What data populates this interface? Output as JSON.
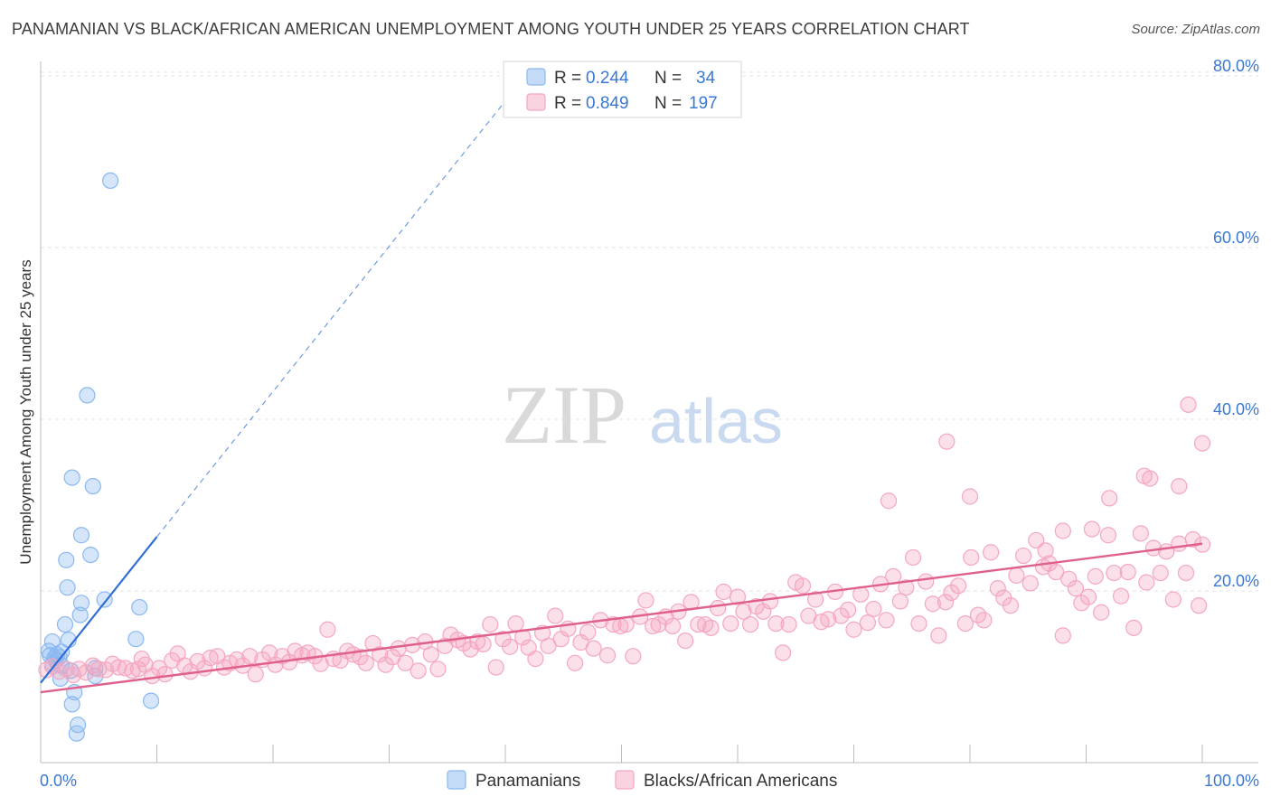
{
  "title": "PANAMANIAN VS BLACK/AFRICAN AMERICAN UNEMPLOYMENT AMONG YOUTH UNDER 25 YEARS CORRELATION CHART",
  "source": "Source: ZipAtlas.com",
  "watermark": {
    "zip": "ZIP",
    "atlas": "atlas"
  },
  "legend_box": {
    "rows": [
      {
        "r_label": "R =",
        "r_value": "0.244",
        "n_label": "N =",
        "n_value": "34",
        "color": "#8ab8f0"
      },
      {
        "r_label": "R =",
        "r_value": "0.849",
        "n_label": "N =",
        "n_value": "197",
        "color": "#f4a7bf"
      }
    ]
  },
  "chart_data": {
    "type": "scatter",
    "xlabel": "",
    "ylabel": "Unemployment Among Youth under 25 years",
    "xlim": [
      0,
      100
    ],
    "ylim": [
      0,
      80
    ],
    "x_tick_labels": [
      "0.0%",
      "100.0%"
    ],
    "y_tick_labels": [
      "20.0%",
      "40.0%",
      "60.0%",
      "80.0%"
    ],
    "y_ticks": [
      20,
      40,
      60,
      80
    ],
    "grid": true,
    "legend_position": "bottom-center",
    "series": [
      {
        "name": "Panamanians",
        "color": "#8ab8f0",
        "trend_color": "#2f6fd6",
        "trend": {
          "x0": 0,
          "y0": 9.3,
          "x1": 10,
          "y1": 26.3,
          "dashed_to_x": 50,
          "dashed_to_y": 94
        },
        "points": [
          [
            6.0,
            67.8
          ],
          [
            4.0,
            42.8
          ],
          [
            2.7,
            33.2
          ],
          [
            4.5,
            32.2
          ],
          [
            3.5,
            26.5
          ],
          [
            4.3,
            24.2
          ],
          [
            2.2,
            23.6
          ],
          [
            2.3,
            20.4
          ],
          [
            3.5,
            18.6
          ],
          [
            5.5,
            19.0
          ],
          [
            3.4,
            17.2
          ],
          [
            2.1,
            16.1
          ],
          [
            8.5,
            18.1
          ],
          [
            1.0,
            14.1
          ],
          [
            2.4,
            14.3
          ],
          [
            8.2,
            14.4
          ],
          [
            0.8,
            12.5
          ],
          [
            1.4,
            12.6
          ],
          [
            1.8,
            12.9
          ],
          [
            1.2,
            12.2
          ],
          [
            0.7,
            13.0
          ],
          [
            1.6,
            12.3
          ],
          [
            1.0,
            11.5
          ],
          [
            1.3,
            11.9
          ],
          [
            1.8,
            11.3
          ],
          [
            2.6,
            10.7
          ],
          [
            4.7,
            11.0
          ],
          [
            1.7,
            9.8
          ],
          [
            4.7,
            10.1
          ],
          [
            2.9,
            8.2
          ],
          [
            2.7,
            6.8
          ],
          [
            9.5,
            7.2
          ],
          [
            3.2,
            4.4
          ],
          [
            3.1,
            3.4
          ]
        ]
      },
      {
        "name": "Blacks/African Americans",
        "color": "#f4a7bf",
        "trend_color": "#e0608c",
        "trend": {
          "x0": 0,
          "y0": 8.2,
          "x1": 100,
          "y1": 25.5
        },
        "points": [
          [
            0.5,
            10.8
          ],
          [
            1.0,
            11.2
          ],
          [
            1.6,
            10.6
          ],
          [
            2.2,
            10.9
          ],
          [
            2.8,
            10.2
          ],
          [
            3.3,
            10.9
          ],
          [
            3.9,
            10.5
          ],
          [
            4.5,
            11.3
          ],
          [
            5.0,
            10.9
          ],
          [
            5.6,
            10.8
          ],
          [
            6.2,
            11.5
          ],
          [
            6.7,
            11.1
          ],
          [
            7.3,
            11.0
          ],
          [
            7.9,
            10.7
          ],
          [
            8.4,
            10.9
          ],
          [
            8.7,
            12.1
          ],
          [
            9.0,
            11.4
          ],
          [
            9.6,
            10.1
          ],
          [
            10.2,
            11.0
          ],
          [
            10.7,
            10.3
          ],
          [
            11.3,
            11.9
          ],
          [
            11.8,
            12.7
          ],
          [
            12.4,
            11.3
          ],
          [
            12.9,
            10.6
          ],
          [
            13.5,
            11.8
          ],
          [
            14.1,
            11.0
          ],
          [
            14.6,
            12.2
          ],
          [
            15.2,
            12.4
          ],
          [
            15.8,
            11.1
          ],
          [
            16.3,
            11.6
          ],
          [
            16.9,
            12.0
          ],
          [
            17.4,
            11.3
          ],
          [
            18.0,
            12.4
          ],
          [
            18.5,
            10.3
          ],
          [
            19.1,
            12.0
          ],
          [
            19.7,
            12.8
          ],
          [
            20.2,
            11.4
          ],
          [
            20.8,
            12.4
          ],
          [
            21.4,
            11.7
          ],
          [
            21.9,
            13.0
          ],
          [
            22.5,
            12.5
          ],
          [
            23.0,
            12.8
          ],
          [
            23.6,
            12.4
          ],
          [
            24.1,
            11.5
          ],
          [
            24.7,
            15.5
          ],
          [
            25.2,
            12.1
          ],
          [
            25.8,
            11.9
          ],
          [
            26.4,
            13.0
          ],
          [
            26.9,
            12.6
          ],
          [
            27.5,
            12.3
          ],
          [
            28.0,
            11.6
          ],
          [
            28.6,
            13.9
          ],
          [
            29.2,
            12.6
          ],
          [
            29.7,
            11.4
          ],
          [
            30.3,
            12.3
          ],
          [
            30.8,
            13.3
          ],
          [
            31.4,
            11.6
          ],
          [
            32.0,
            13.7
          ],
          [
            32.5,
            10.7
          ],
          [
            33.1,
            14.1
          ],
          [
            33.6,
            12.6
          ],
          [
            34.2,
            10.9
          ],
          [
            34.8,
            13.6
          ],
          [
            35.3,
            14.9
          ],
          [
            35.9,
            14.3
          ],
          [
            36.4,
            13.9
          ],
          [
            37.0,
            13.2
          ],
          [
            37.6,
            14.1
          ],
          [
            38.1,
            13.8
          ],
          [
            38.7,
            16.1
          ],
          [
            39.2,
            11.1
          ],
          [
            39.8,
            14.4
          ],
          [
            40.4,
            13.5
          ],
          [
            40.9,
            16.2
          ],
          [
            41.5,
            14.6
          ],
          [
            42.0,
            13.4
          ],
          [
            42.6,
            12.1
          ],
          [
            43.2,
            15.1
          ],
          [
            43.7,
            13.6
          ],
          [
            44.3,
            17.1
          ],
          [
            44.8,
            14.4
          ],
          [
            45.4,
            15.6
          ],
          [
            46.0,
            11.6
          ],
          [
            46.5,
            14.0
          ],
          [
            47.1,
            15.2
          ],
          [
            47.6,
            13.3
          ],
          [
            48.2,
            16.6
          ],
          [
            48.8,
            12.5
          ],
          [
            49.3,
            16.1
          ],
          [
            49.9,
            15.9
          ],
          [
            50.4,
            16.1
          ],
          [
            51.0,
            12.4
          ],
          [
            51.6,
            17.0
          ],
          [
            52.1,
            18.9
          ],
          [
            52.7,
            15.9
          ],
          [
            53.2,
            16.1
          ],
          [
            53.8,
            17.0
          ],
          [
            54.4,
            15.9
          ],
          [
            54.9,
            17.6
          ],
          [
            55.5,
            14.2
          ],
          [
            56.0,
            18.7
          ],
          [
            56.6,
            16.1
          ],
          [
            57.2,
            16.1
          ],
          [
            57.7,
            15.7
          ],
          [
            58.3,
            18.0
          ],
          [
            58.8,
            19.9
          ],
          [
            59.4,
            16.2
          ],
          [
            60.0,
            19.3
          ],
          [
            60.5,
            17.6
          ],
          [
            61.1,
            16.1
          ],
          [
            61.6,
            18.2
          ],
          [
            62.2,
            17.6
          ],
          [
            62.8,
            18.8
          ],
          [
            63.3,
            16.2
          ],
          [
            63.9,
            12.8
          ],
          [
            64.4,
            16.1
          ],
          [
            65.0,
            21.0
          ],
          [
            65.6,
            20.6
          ],
          [
            66.1,
            17.1
          ],
          [
            66.7,
            19.0
          ],
          [
            67.2,
            16.4
          ],
          [
            67.8,
            16.7
          ],
          [
            68.4,
            19.9
          ],
          [
            68.9,
            17.1
          ],
          [
            69.5,
            17.8
          ],
          [
            70.0,
            15.5
          ],
          [
            70.6,
            19.6
          ],
          [
            71.2,
            16.3
          ],
          [
            71.7,
            17.9
          ],
          [
            72.3,
            20.8
          ],
          [
            72.8,
            16.6
          ],
          [
            73.4,
            21.7
          ],
          [
            74.0,
            18.8
          ],
          [
            74.5,
            20.4
          ],
          [
            75.1,
            23.9
          ],
          [
            75.6,
            16.2
          ],
          [
            76.2,
            21.1
          ],
          [
            76.8,
            18.5
          ],
          [
            77.3,
            14.8
          ],
          [
            77.9,
            18.7
          ],
          [
            78.4,
            19.8
          ],
          [
            79.0,
            20.6
          ],
          [
            79.6,
            16.2
          ],
          [
            80.1,
            23.9
          ],
          [
            80.7,
            17.2
          ],
          [
            81.2,
            16.6
          ],
          [
            81.8,
            24.5
          ],
          [
            82.4,
            20.3
          ],
          [
            82.9,
            19.2
          ],
          [
            83.5,
            18.3
          ],
          [
            84.0,
            21.8
          ],
          [
            84.6,
            24.1
          ],
          [
            85.2,
            20.9
          ],
          [
            85.7,
            25.9
          ],
          [
            86.3,
            22.8
          ],
          [
            86.8,
            23.2
          ],
          [
            87.4,
            22.2
          ],
          [
            88.0,
            14.8
          ],
          [
            88.5,
            21.4
          ],
          [
            89.1,
            20.3
          ],
          [
            89.6,
            18.6
          ],
          [
            90.2,
            19.3
          ],
          [
            90.8,
            21.7
          ],
          [
            91.3,
            17.5
          ],
          [
            91.9,
            26.5
          ],
          [
            92.4,
            22.1
          ],
          [
            93.0,
            19.4
          ],
          [
            93.6,
            22.2
          ],
          [
            94.1,
            15.7
          ],
          [
            94.7,
            26.7
          ],
          [
            95.2,
            21.0
          ],
          [
            95.8,
            25.0
          ],
          [
            96.4,
            22.1
          ],
          [
            96.9,
            24.6
          ],
          [
            97.5,
            19.0
          ],
          [
            98.0,
            25.5
          ],
          [
            98.6,
            22.1
          ],
          [
            99.2,
            26.0
          ],
          [
            99.7,
            18.3
          ],
          [
            100.0,
            25.4
          ],
          [
            73.0,
            30.5
          ],
          [
            78.0,
            37.4
          ],
          [
            80.0,
            31.0
          ],
          [
            92.0,
            30.8
          ],
          [
            95.0,
            33.4
          ],
          [
            98.0,
            32.2
          ],
          [
            100.0,
            37.2
          ],
          [
            98.8,
            41.7
          ],
          [
            95.5,
            33.1
          ],
          [
            88.0,
            27.0
          ],
          [
            90.5,
            27.2
          ],
          [
            86.5,
            24.7
          ]
        ]
      }
    ]
  }
}
